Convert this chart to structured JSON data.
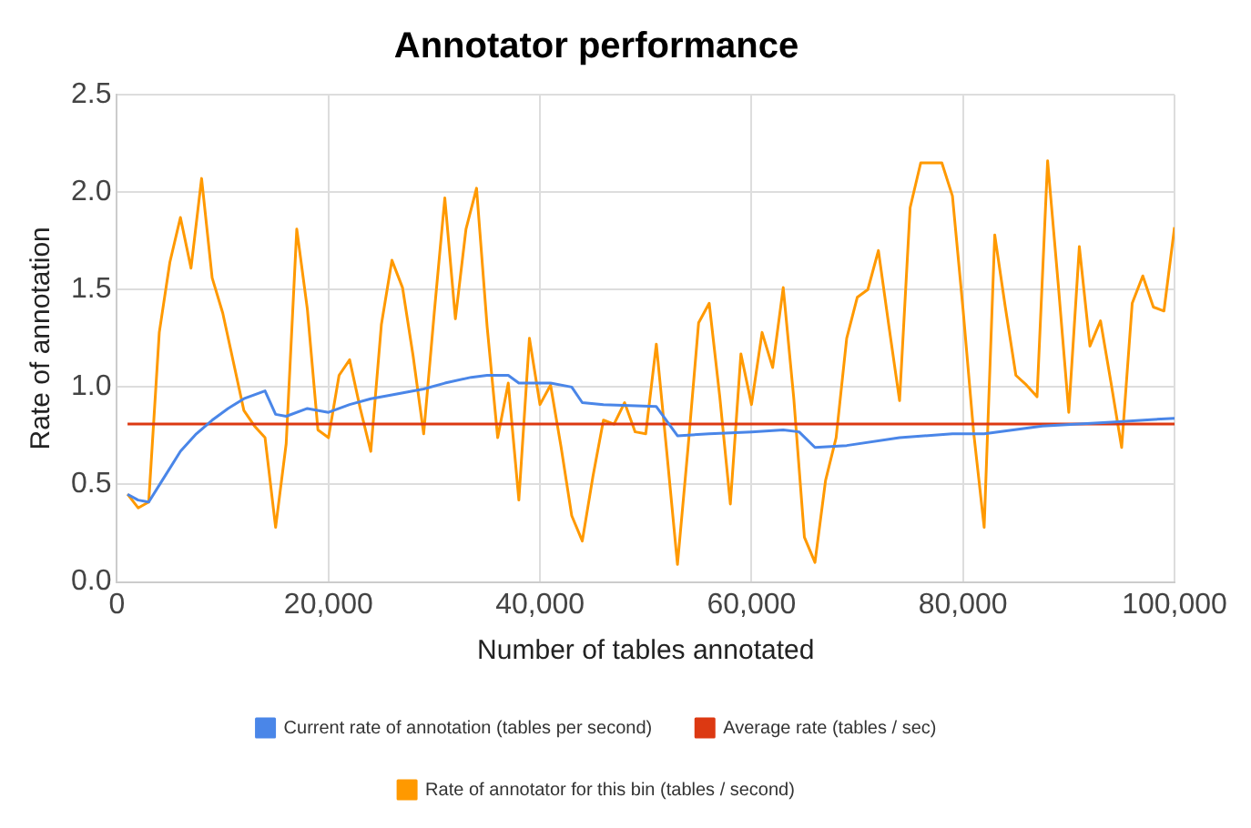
{
  "chart_data": {
    "type": "line",
    "title": "Annotator performance",
    "xlabel": "Number of tables annotated",
    "ylabel": "Rate of annotation",
    "xlim": [
      0,
      100000
    ],
    "xticks": [
      {
        "value": 0,
        "label": "0"
      },
      {
        "value": 20000,
        "label": "20,000"
      },
      {
        "value": 40000,
        "label": "40,000"
      },
      {
        "value": 60000,
        "label": "60,000"
      },
      {
        "value": 80000,
        "label": "80,000"
      },
      {
        "value": 100000,
        "label": "100,000"
      }
    ],
    "ylim": [
      0,
      2.5
    ],
    "yticks": [
      {
        "value": 0,
        "label": "0.0"
      },
      {
        "value": 0.5,
        "label": "0.5"
      },
      {
        "value": 1,
        "label": "1.0"
      },
      {
        "value": 1.5,
        "label": "1.5"
      },
      {
        "value": 2,
        "label": "2.0"
      },
      {
        "value": 2.5,
        "label": "2.5"
      }
    ],
    "grid": true,
    "legend": "bottom",
    "marker": "none",
    "line_style": "solid",
    "series": [
      {
        "name": "Current rate of annotation (tables per second)",
        "color": "#4a86e8",
        "x": [
          1000,
          2000,
          3000,
          4500,
          6000,
          7500,
          9000,
          10500,
          12000,
          14000,
          15000,
          16000,
          18000,
          20000,
          22000,
          24000,
          26000,
          29000,
          31000,
          33500,
          35000,
          37000,
          38000,
          41000,
          43000,
          44000,
          46000,
          51000,
          53000,
          56000,
          60000,
          63000,
          64500,
          66000,
          69000,
          74000,
          79000,
          82000,
          87500,
          94000,
          100000
        ],
        "values": [
          0.45,
          0.42,
          0.41,
          0.54,
          0.67,
          0.76,
          0.83,
          0.89,
          0.94,
          0.98,
          0.86,
          0.85,
          0.89,
          0.87,
          0.91,
          0.94,
          0.96,
          0.99,
          1.02,
          1.05,
          1.06,
          1.06,
          1.02,
          1.02,
          1.0,
          0.92,
          0.91,
          0.9,
          0.75,
          0.76,
          0.77,
          0.78,
          0.77,
          0.69,
          0.7,
          0.74,
          0.76,
          0.76,
          0.8,
          0.82,
          0.84
        ]
      },
      {
        "name": "Average rate (tables / sec)",
        "color": "#dc3912",
        "x": [
          1000,
          100000
        ],
        "values": [
          0.81,
          0.81
        ]
      },
      {
        "name": "Rate of annotator for this bin (tables / second)",
        "color": "#ff9900",
        "x": [
          1000,
          2000,
          3000,
          4000,
          5000,
          6000,
          7000,
          8000,
          9000,
          10000,
          11000,
          12000,
          13000,
          14000,
          15000,
          16000,
          17000,
          18000,
          19000,
          20000,
          21000,
          22000,
          23000,
          24000,
          25000,
          26000,
          27000,
          28000,
          29000,
          30000,
          31000,
          32000,
          33000,
          34000,
          35000,
          36000,
          37000,
          38000,
          39000,
          40000,
          41000,
          42000,
          43000,
          44000,
          45000,
          46000,
          47000,
          48000,
          49000,
          50000,
          51000,
          52000,
          53000,
          54000,
          55000,
          56000,
          57000,
          58000,
          59000,
          60000,
          61000,
          62000,
          63000,
          64000,
          65000,
          66000,
          67000,
          68000,
          69000,
          70000,
          71000,
          72000,
          73000,
          74000,
          75000,
          76000,
          77000,
          78000,
          79000,
          80000,
          81000,
          82000,
          83000,
          84000,
          85000,
          86000,
          87000,
          88000,
          89000,
          90000,
          91000,
          92000,
          93000,
          94000,
          95000,
          96000,
          97000,
          98000,
          99000,
          100000
        ],
        "values": [
          0.45,
          0.38,
          0.41,
          1.28,
          1.64,
          1.87,
          1.61,
          2.07,
          1.56,
          1.38,
          1.13,
          0.88,
          0.8,
          0.74,
          0.28,
          0.71,
          1.81,
          1.4,
          0.78,
          0.74,
          1.06,
          1.14,
          0.89,
          0.67,
          1.32,
          1.65,
          1.51,
          1.16,
          0.76,
          1.38,
          1.97,
          1.35,
          1.81,
          2.02,
          1.31,
          0.74,
          1.02,
          0.42,
          1.25,
          0.91,
          1.01,
          0.69,
          0.34,
          0.21,
          0.54,
          0.83,
          0.81,
          0.92,
          0.77,
          0.76,
          1.22,
          0.66,
          0.09,
          0.69,
          1.33,
          1.43,
          0.95,
          0.4,
          1.17,
          0.91,
          1.28,
          1.1,
          1.51,
          0.94,
          0.23,
          0.1,
          0.52,
          0.74,
          1.25,
          1.46,
          1.5,
          1.7,
          1.31,
          0.93,
          1.92,
          2.15,
          2.15,
          2.15,
          1.98,
          1.4,
          0.77,
          0.28,
          1.78,
          1.41,
          1.06,
          1.01,
          0.95,
          2.16,
          1.53,
          0.87,
          1.72,
          1.21,
          1.34,
          1.02,
          0.69,
          1.43,
          1.57,
          1.41,
          1.39,
          1.82
        ]
      }
    ]
  }
}
